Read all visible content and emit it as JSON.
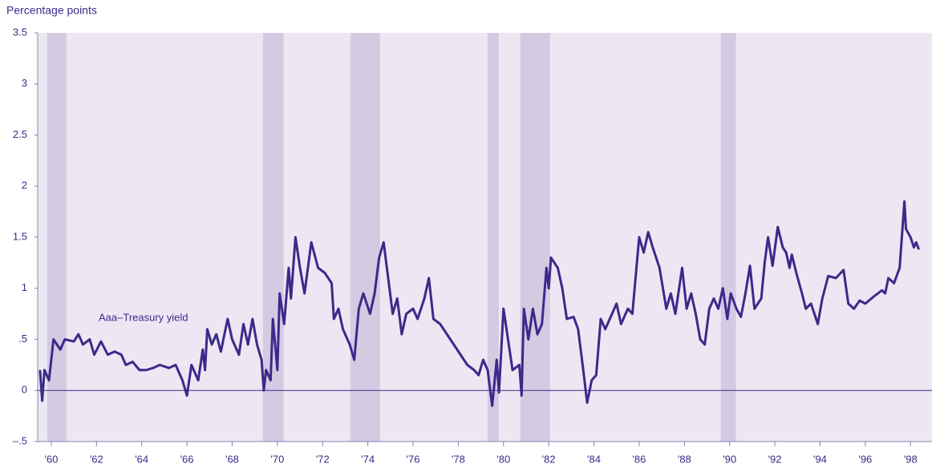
{
  "chart_data": {
    "type": "line",
    "y_label": "Percentage points",
    "annotation": "Aaa–Treasury yield",
    "color": "#3b2a8a",
    "shading_color": "#d4cbe3",
    "background": "#ede7f3",
    "zero_line": true,
    "shading": [
      [
        1959.82,
        1960.67
      ],
      [
        1969.36,
        1970.28
      ],
      [
        1973.23,
        1974.54
      ],
      [
        1979.29,
        1979.79
      ],
      [
        1980.74,
        1982.06
      ],
      [
        1989.61,
        1990.28
      ]
    ],
    "xlim": [
      1959.4,
      1998.95
    ],
    "ylim": [
      -0.5,
      3.5
    ],
    "xticks": [
      {
        "value": 1960,
        "label": "'60"
      },
      {
        "value": 1962,
        "label": "'62"
      },
      {
        "value": 1964,
        "label": "'64"
      },
      {
        "value": 1966,
        "label": "'66"
      },
      {
        "value": 1968,
        "label": "'68"
      },
      {
        "value": 1970,
        "label": "'70"
      },
      {
        "value": 1972,
        "label": "'72"
      },
      {
        "value": 1974,
        "label": "'74"
      },
      {
        "value": 1976,
        "label": "'76"
      },
      {
        "value": 1978,
        "label": "'78"
      },
      {
        "value": 1980,
        "label": "'80"
      },
      {
        "value": 1982,
        "label": "'82"
      },
      {
        "value": 1984,
        "label": "'84"
      },
      {
        "value": 1986,
        "label": "'86"
      },
      {
        "value": 1988,
        "label": "'88"
      },
      {
        "value": 1990,
        "label": "'90"
      },
      {
        "value": 1992,
        "label": "'92"
      },
      {
        "value": 1994,
        "label": "'94"
      },
      {
        "value": 1996,
        "label": "'96"
      },
      {
        "value": 1998,
        "label": "'98"
      }
    ],
    "yticks": [
      3.5,
      3,
      2.5,
      2,
      1.5,
      1,
      {
        "value": 0.5,
        "label": ".5"
      },
      0,
      {
        "value": -0.5,
        "label": "–.5"
      }
    ],
    "x": [
      1959.5,
      1959.6,
      1959.7,
      1959.9,
      1960.1,
      1960.4,
      1960.6,
      1961,
      1961.2,
      1961.4,
      1961.7,
      1961.9,
      1962.2,
      1962.5,
      1962.8,
      1963.1,
      1963.3,
      1963.6,
      1963.9,
      1964.2,
      1964.5,
      1964.8,
      1965.2,
      1965.5,
      1965.8,
      1966,
      1966.2,
      1966.5,
      1966.7,
      1966.8,
      1966.9,
      1967.1,
      1967.3,
      1967.5,
      1967.8,
      1968,
      1968.3,
      1968.5,
      1968.7,
      1968.9,
      1969.1,
      1969.3,
      1969.4,
      1969.5,
      1969.7,
      1969.8,
      1970,
      1970.1,
      1970.3,
      1970.5,
      1970.6,
      1970.8,
      1971,
      1971.2,
      1971.5,
      1971.8,
      1972.1,
      1972.4,
      1972.5,
      1972.7,
      1972.9,
      1973.2,
      1973.4,
      1973.6,
      1973.8,
      1974.1,
      1974.3,
      1974.5,
      1974.7,
      1974.9,
      1975.1,
      1975.3,
      1975.5,
      1975.7,
      1976,
      1976.2,
      1976.5,
      1976.7,
      1976.9,
      1977.2,
      1977.5,
      1977.8,
      1978.1,
      1978.4,
      1978.7,
      1978.9,
      1979.1,
      1979.3,
      1979.5,
      1979.7,
      1979.8,
      1980,
      1980.2,
      1980.4,
      1980.7,
      1980.8,
      1980.9,
      1981.1,
      1981.3,
      1981.5,
      1981.7,
      1981.9,
      1982,
      1982.1,
      1982.4,
      1982.6,
      1982.8,
      1983.1,
      1983.3,
      1983.5,
      1983.7,
      1983.9,
      1984.1,
      1984.3,
      1984.5,
      1984.8,
      1985,
      1985.2,
      1985.5,
      1985.7,
      1986,
      1986.2,
      1986.4,
      1986.6,
      1986.9,
      1987.2,
      1987.4,
      1987.6,
      1987.9,
      1988.1,
      1988.3,
      1988.5,
      1988.7,
      1988.9,
      1989.1,
      1989.3,
      1989.5,
      1989.7,
      1989.9,
      1990.05,
      1990.3,
      1990.5,
      1990.7,
      1990.9,
      1991.1,
      1991.4,
      1991.55,
      1991.7,
      1991.9,
      1992.13,
      1992.35,
      1992.5,
      1992.65,
      1992.75,
      1992.95,
      1993.2,
      1993.37,
      1993.6,
      1993.9,
      1994.1,
      1994.36,
      1994.7,
      1995.04,
      1995.25,
      1995.5,
      1995.75,
      1996,
      1996.38,
      1996.74,
      1996.88,
      1997.02,
      1997.27,
      1997.52,
      1997.73,
      1997.8,
      1998,
      1998.15,
      1998.25,
      1998.37
    ],
    "values": [
      0.2,
      -0.1,
      0.2,
      0.1,
      0.5,
      0.4,
      0.5,
      0.48,
      0.55,
      0.45,
      0.5,
      0.35,
      0.48,
      0.35,
      0.38,
      0.35,
      0.25,
      0.28,
      0.2,
      0.2,
      0.22,
      0.25,
      0.22,
      0.25,
      0.1,
      -0.05,
      0.25,
      0.1,
      0.4,
      0.2,
      0.6,
      0.45,
      0.55,
      0.38,
      0.7,
      0.5,
      0.35,
      0.65,
      0.45,
      0.7,
      0.45,
      0.3,
      0,
      0.2,
      0.1,
      0.7,
      0.2,
      0.95,
      0.65,
      1.2,
      0.9,
      1.5,
      1.2,
      0.95,
      1.45,
      1.2,
      1.15,
      1.05,
      0.7,
      0.8,
      0.6,
      0.45,
      0.3,
      0.8,
      0.95,
      0.75,
      0.95,
      1.3,
      1.45,
      1.1,
      0.75,
      0.9,
      0.55,
      0.75,
      0.8,
      0.7,
      0.9,
      1.1,
      0.7,
      0.65,
      0.55,
      0.45,
      0.35,
      0.25,
      0.2,
      0.15,
      0.3,
      0.2,
      -0.15,
      0.3,
      -0.02,
      0.8,
      0.5,
      0.2,
      0.25,
      -0.05,
      0.8,
      0.5,
      0.8,
      0.55,
      0.65,
      1.2,
      1,
      1.3,
      1.2,
      1,
      0.7,
      0.72,
      0.6,
      0.25,
      -0.12,
      0.1,
      0.15,
      0.7,
      0.6,
      0.75,
      0.85,
      0.65,
      0.8,
      0.75,
      1.5,
      1.35,
      1.55,
      1.4,
      1.2,
      0.8,
      0.95,
      0.75,
      1.2,
      0.8,
      0.95,
      0.75,
      0.5,
      0.45,
      0.8,
      0.9,
      0.8,
      1,
      0.7,
      0.95,
      0.8,
      0.72,
      0.95,
      1.22,
      0.8,
      0.9,
      1.25,
      1.5,
      1.22,
      1.6,
      1.4,
      1.35,
      1.2,
      1.33,
      1.15,
      0.95,
      0.8,
      0.85,
      0.65,
      0.9,
      1.12,
      1.1,
      1.18,
      0.85,
      0.8,
      0.88,
      0.85,
      0.92,
      0.98,
      0.95,
      1.1,
      1.05,
      1.2,
      1.85,
      1.58,
      1.5,
      1.4,
      1.45,
      1.38
    ]
  }
}
